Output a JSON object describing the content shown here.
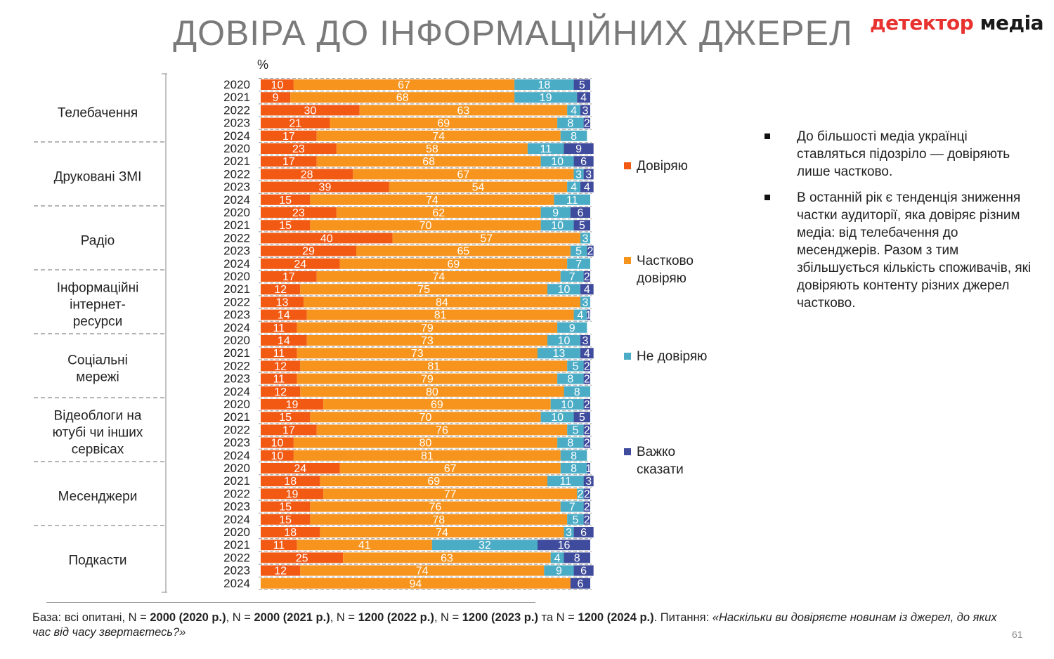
{
  "title": "ДОВІРА ДО ІНФОРМАЦІЙНИХ ДЖЕРЕЛ",
  "logo": {
    "part1": "детектор",
    "part2": "медіа"
  },
  "page_number": "61",
  "footer": {
    "p1": "База: всі опитані, N = ",
    "b1": "2000 (2020 р.)",
    "p2": ", N = ",
    "b2": "2000 (2021 р.)",
    "p3": ", N = ",
    "b3": "1200 (2022 р.)",
    "p4": ", N = ",
    "b4": "1200 (2023 р.)",
    "p5": " та N = ",
    "b5": "1200 (2024 р.)",
    "p6": ". Питання:  ",
    "question": "«Наскільки ви довіряєте новинам із джерел, до яких час від часу звертаєтесь?»"
  },
  "bullets": [
    "До більшості медіа українці ставляться підозріло — довіряють лише частково.",
    "В останній рік є тенденція зниження частки аудиторії, яка довіряє різним медіа: від телебачення до месенджерів. Разом з тим збільшується кількість споживачів, які довіряють контенту різних джерел частково."
  ],
  "colors": {
    "trust": "#f25a14",
    "partial": "#f7941d",
    "distrust": "#4bacc6",
    "hard": "#3f4b9c"
  },
  "chart_data": {
    "type": "bar",
    "orientation": "horizontal",
    "stacked": true,
    "unit_label": "%",
    "xlim": [
      0,
      100
    ],
    "series": [
      {
        "name": "Довіряю",
        "color": "#f25a14"
      },
      {
        "name": "Частково\nдовіряю",
        "color": "#f7941d"
      },
      {
        "name": "Не довіряю",
        "color": "#4bacc6"
      },
      {
        "name": "Важко\nсказати",
        "color": "#3f4b9c"
      }
    ],
    "groups": [
      {
        "name": "Телебачення",
        "rows": [
          {
            "year": "2020",
            "values": [
              10,
              67,
              18,
              5
            ]
          },
          {
            "year": "2021",
            "values": [
              9,
              68,
              19,
              4
            ]
          },
          {
            "year": "2022",
            "values": [
              30,
              63,
              4,
              3
            ]
          },
          {
            "year": "2023",
            "values": [
              21,
              69,
              8,
              2
            ]
          },
          {
            "year": "2024",
            "values": [
              17,
              74,
              8,
              null
            ]
          }
        ]
      },
      {
        "name": "Друковані ЗМІ",
        "rows": [
          {
            "year": "2020",
            "values": [
              23,
              58,
              11,
              9
            ]
          },
          {
            "year": "2021",
            "values": [
              17,
              68,
              10,
              6
            ]
          },
          {
            "year": "2022",
            "values": [
              28,
              67,
              3,
              3
            ]
          },
          {
            "year": "2023",
            "values": [
              39,
              54,
              4,
              4
            ]
          },
          {
            "year": "2024",
            "values": [
              15,
              74,
              11,
              null
            ]
          }
        ]
      },
      {
        "name": "Радіо",
        "rows": [
          {
            "year": "2020",
            "values": [
              23,
              62,
              9,
              6
            ]
          },
          {
            "year": "2021",
            "values": [
              15,
              70,
              10,
              5
            ]
          },
          {
            "year": "2022",
            "values": [
              40,
              57,
              3,
              null
            ]
          },
          {
            "year": "2023",
            "values": [
              29,
              65,
              5,
              2
            ]
          },
          {
            "year": "2024",
            "values": [
              24,
              69,
              7,
              null
            ]
          }
        ]
      },
      {
        "name": "Інформаційні\nінтернет-\nресурси",
        "rows": [
          {
            "year": "2020",
            "values": [
              17,
              74,
              7,
              2
            ]
          },
          {
            "year": "2021",
            "values": [
              12,
              75,
              10,
              4
            ]
          },
          {
            "year": "2022",
            "values": [
              13,
              84,
              3,
              null
            ]
          },
          {
            "year": "2023",
            "values": [
              14,
              81,
              4,
              1
            ]
          },
          {
            "year": "2024",
            "values": [
              11,
              79,
              9,
              null
            ]
          }
        ]
      },
      {
        "name": "Соціальні\nмережі",
        "rows": [
          {
            "year": "2020",
            "values": [
              14,
              73,
              10,
              3
            ]
          },
          {
            "year": "2021",
            "values": [
              11,
              73,
              13,
              4
            ]
          },
          {
            "year": "2022",
            "values": [
              12,
              81,
              5,
              2
            ]
          },
          {
            "year": "2023",
            "values": [
              11,
              79,
              8,
              2
            ]
          },
          {
            "year": "2024",
            "values": [
              12,
              80,
              8,
              null
            ]
          }
        ]
      },
      {
        "name": "Відеоблоги на\nютубі  чи інших\nсервісах",
        "rows": [
          {
            "year": "2020",
            "values": [
              19,
              69,
              10,
              2
            ]
          },
          {
            "year": "2021",
            "values": [
              15,
              70,
              10,
              5
            ]
          },
          {
            "year": "2022",
            "values": [
              17,
              76,
              5,
              2
            ]
          },
          {
            "year": "2023",
            "values": [
              10,
              80,
              8,
              2
            ]
          },
          {
            "year": "2024",
            "values": [
              10,
              81,
              8,
              null
            ]
          }
        ]
      },
      {
        "name": "Месенджери",
        "rows": [
          {
            "year": "2020",
            "values": [
              24,
              67,
              8,
              1
            ]
          },
          {
            "year": "2021",
            "values": [
              18,
              69,
              11,
              3
            ]
          },
          {
            "year": "2022",
            "values": [
              19,
              77,
              2,
              2
            ]
          },
          {
            "year": "2023",
            "values": [
              15,
              76,
              7,
              2
            ]
          },
          {
            "year": "2024",
            "values": [
              15,
              78,
              5,
              2
            ]
          }
        ]
      },
      {
        "name": "Подкасти",
        "rows": [
          {
            "year": "2020",
            "values": [
              18,
              74,
              3,
              6
            ]
          },
          {
            "year": "2021",
            "values": [
              11,
              41,
              32,
              16
            ]
          },
          {
            "year": "2022",
            "values": [
              25,
              63,
              4,
              8
            ]
          },
          {
            "year": "2023",
            "values": [
              12,
              74,
              9,
              6
            ]
          },
          {
            "year": "2024",
            "values": [
              null,
              94,
              null,
              6
            ]
          }
        ]
      }
    ]
  }
}
